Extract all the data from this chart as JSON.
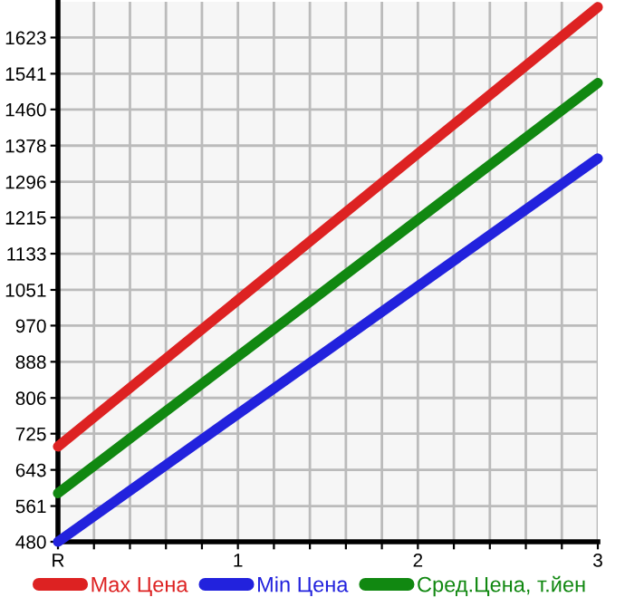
{
  "chart_data": {
    "type": "line",
    "x": [
      0,
      3
    ],
    "series": [
      {
        "name": "Max Цена",
        "color": "#dd2222",
        "values": [
          696,
          1692
        ]
      },
      {
        "name": "Min Цена",
        "color": "#2222dd",
        "values": [
          480,
          1349
        ]
      },
      {
        "name": "Сред.Цена, т.йен",
        "color": "#118811",
        "values": [
          590,
          1520
        ]
      }
    ],
    "xlim": [
      0,
      3
    ],
    "xticks": [
      {
        "value": 0,
        "label": "R"
      },
      {
        "value": 0.2,
        "label": null
      },
      {
        "value": 0.4,
        "label": null
      },
      {
        "value": 0.6,
        "label": null
      },
      {
        "value": 0.8,
        "label": null
      },
      1,
      {
        "value": 1.2,
        "label": null
      },
      {
        "value": 1.4,
        "label": null
      },
      {
        "value": 1.6,
        "label": null
      },
      {
        "value": 1.8,
        "label": null
      },
      2,
      {
        "value": 2.2,
        "label": null
      },
      {
        "value": 2.4,
        "label": null
      },
      {
        "value": 2.6,
        "label": null
      },
      {
        "value": 2.8,
        "label": null
      },
      3
    ],
    "ylim": [
      480,
      1704
    ],
    "yticks": [
      480,
      561,
      643,
      725,
      806,
      888,
      970,
      1051,
      1133,
      1215,
      1296,
      1378,
      1460,
      1541,
      1623
    ],
    "grid": true,
    "legend": "bottom",
    "marker": "none",
    "line_style": "solid"
  }
}
